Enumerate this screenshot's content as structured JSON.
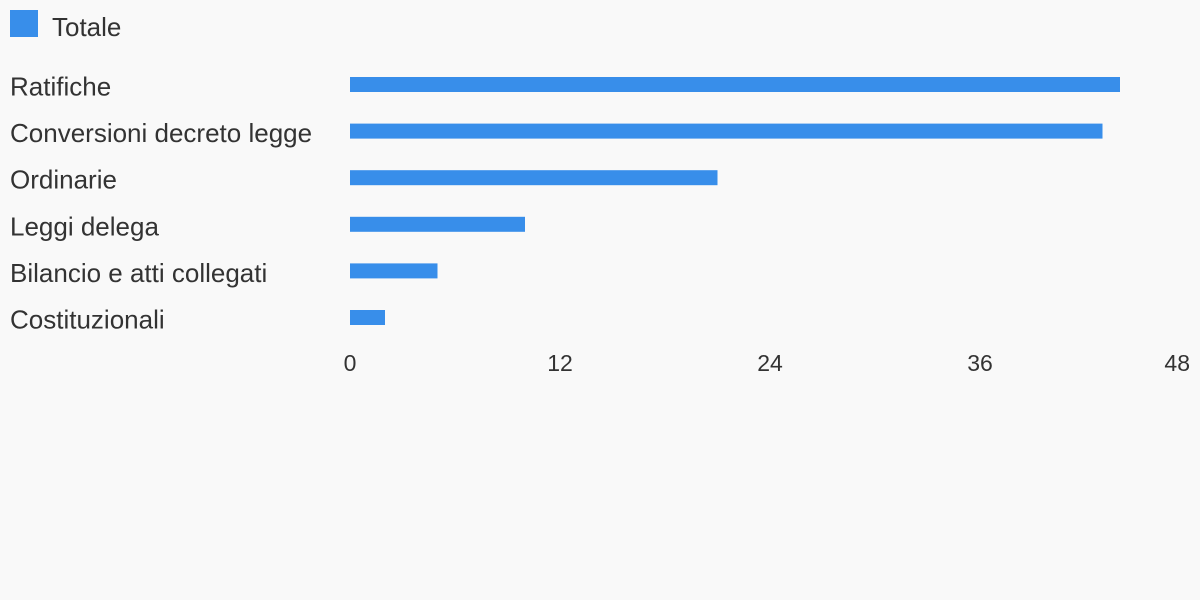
{
  "chart_data": {
    "type": "bar",
    "orientation": "horizontal",
    "categories": [
      "Ratifiche",
      "Conversioni decreto legge",
      "Ordinarie",
      "Leggi delega",
      "Bilancio e atti collegati",
      "Costituzionali"
    ],
    "series": [
      {
        "name": "Totale",
        "color": "#388eea",
        "values": [
          44,
          43,
          21,
          10,
          5,
          2
        ]
      }
    ],
    "xlim": [
      0,
      48
    ],
    "xticks": [
      0,
      12,
      24,
      36,
      48
    ],
    "title": "",
    "xlabel": "",
    "ylabel": "",
    "grid": false,
    "legend_position": "top-left"
  }
}
